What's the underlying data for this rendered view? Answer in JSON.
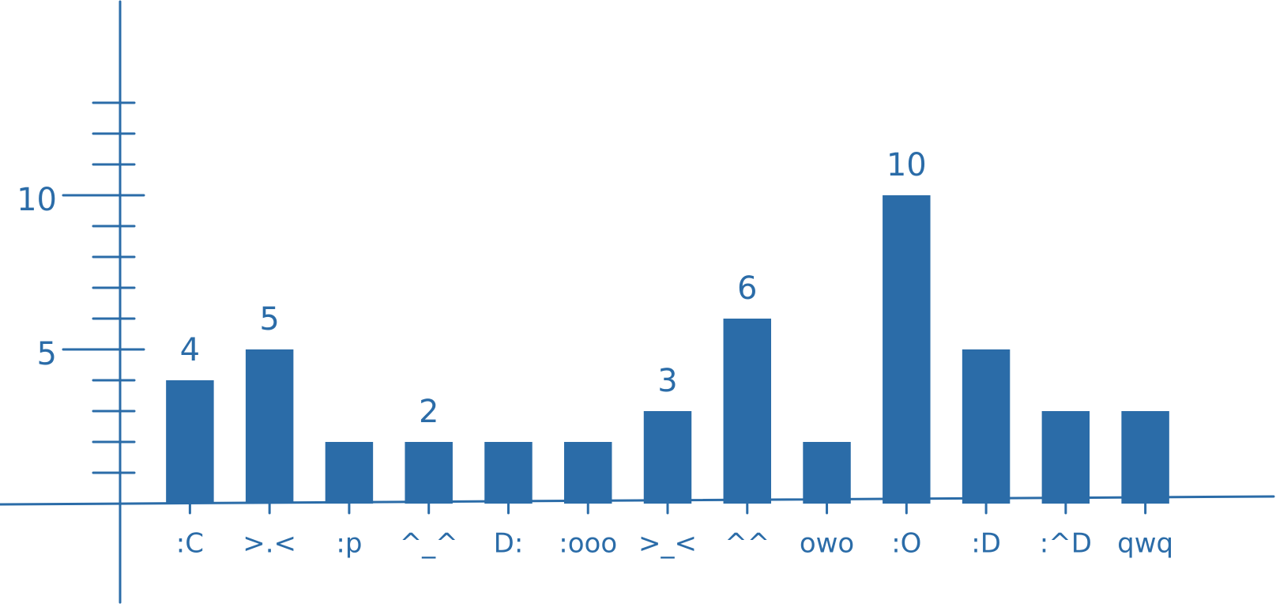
{
  "chart_data": {
    "type": "bar",
    "categories": [
      ":C",
      ">.<",
      ":p",
      "^_^",
      "D:",
      ":ooo",
      ">_<",
      "^^",
      "owo",
      ":O",
      ":D",
      ":^D",
      "qwq"
    ],
    "values": [
      4,
      5,
      2,
      2,
      2,
      2,
      3,
      6,
      2,
      10,
      5,
      3,
      3
    ],
    "value_labels": [
      "4",
      "5",
      null,
      "2",
      null,
      null,
      "3",
      "6",
      null,
      "10",
      null,
      null,
      null
    ],
    "color": "#2b6ca8",
    "ylim": [
      0,
      16
    ],
    "yticks": [
      5,
      10
    ],
    "minor_yticks": [
      1,
      2,
      3,
      4,
      6,
      7,
      8,
      9,
      11,
      12,
      13
    ]
  }
}
